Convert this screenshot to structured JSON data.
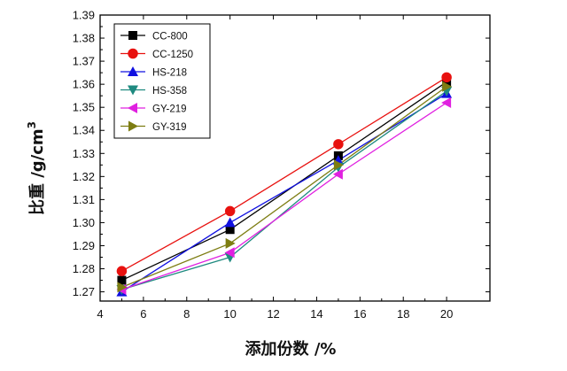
{
  "chart_data": {
    "type": "line",
    "xlabel": "添加份数 /%",
    "ylabel": "比重 /g/cm",
    "ylabel_superscript": "3",
    "xlim": [
      4,
      22
    ],
    "ylim": [
      1.266,
      1.39
    ],
    "x_ticks": [
      4,
      6,
      8,
      10,
      12,
      14,
      16,
      18,
      20
    ],
    "x_tick_labels": [
      "4",
      "6",
      "8",
      "10",
      "12",
      "14",
      "16",
      "18",
      "20"
    ],
    "y_ticks": [
      1.27,
      1.28,
      1.29,
      1.3,
      1.31,
      1.32,
      1.33,
      1.34,
      1.35,
      1.36,
      1.37,
      1.38,
      1.39
    ],
    "y_tick_labels": [
      "1.27",
      "1.28",
      "1.29",
      "1.30",
      "1.31",
      "1.32",
      "1.33",
      "1.34",
      "1.35",
      "1.36",
      "1.37",
      "1.38",
      "1.39"
    ],
    "legend_position": "top-left",
    "x": [
      5,
      10,
      15,
      20
    ],
    "series": [
      {
        "name": "CC-800",
        "values": [
          1.275,
          1.297,
          1.329,
          1.361
        ],
        "color": "#000000",
        "marker": "square"
      },
      {
        "name": "CC-1250",
        "values": [
          1.279,
          1.305,
          1.334,
          1.363
        ],
        "color": "#e8110f",
        "marker": "circle"
      },
      {
        "name": "HS-218",
        "values": [
          1.27,
          1.3,
          1.327,
          1.356
        ],
        "color": "#1010e0",
        "marker": "triangle-up"
      },
      {
        "name": "HS-358",
        "values": [
          1.271,
          1.285,
          1.324,
          1.357
        ],
        "color": "#1f8a80",
        "marker": "triangle-down"
      },
      {
        "name": "GY-219",
        "values": [
          1.271,
          1.287,
          1.321,
          1.352
        ],
        "color": "#e020e0",
        "marker": "triangle-left"
      },
      {
        "name": "GY-319",
        "values": [
          1.272,
          1.291,
          1.325,
          1.359
        ],
        "color": "#7d7d12",
        "marker": "triangle-right"
      }
    ]
  }
}
